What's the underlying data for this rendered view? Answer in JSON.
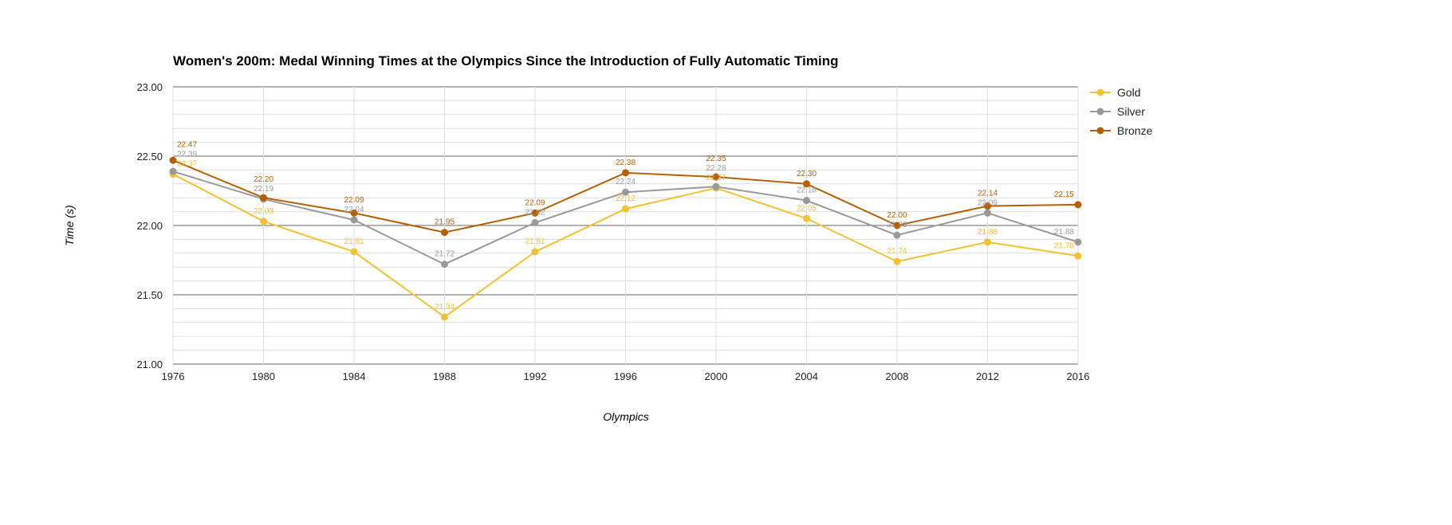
{
  "chart_data": {
    "type": "line",
    "title": "Women's 200m: Medal Winning Times at the Olympics Since the Introduction of Fully Automatic Timing",
    "xlabel": "Olympics",
    "ylabel": "Time (s)",
    "ylim": [
      21.0,
      23.0
    ],
    "yticks": [
      "21.00",
      "21.50",
      "22.00",
      "22.50",
      "23.00"
    ],
    "x": [
      "1976",
      "1980",
      "1984",
      "1988",
      "1992",
      "1996",
      "2000",
      "2004",
      "2008",
      "2012",
      "2016"
    ],
    "legend_position": "right",
    "grid": true,
    "series": [
      {
        "name": "Gold",
        "color": "#f4c132",
        "values": [
          22.37,
          22.03,
          21.81,
          21.34,
          21.81,
          22.12,
          22.27,
          22.05,
          21.74,
          21.88,
          21.78
        ]
      },
      {
        "name": "Silver",
        "color": "#999999",
        "values": [
          22.39,
          22.19,
          22.04,
          21.72,
          22.02,
          22.24,
          22.28,
          22.18,
          21.93,
          22.09,
          21.88
        ]
      },
      {
        "name": "Bronze",
        "color": "#b45f06",
        "values": [
          22.47,
          22.2,
          22.09,
          21.95,
          22.09,
          22.38,
          22.35,
          22.3,
          22.0,
          22.14,
          22.15
        ]
      }
    ]
  }
}
